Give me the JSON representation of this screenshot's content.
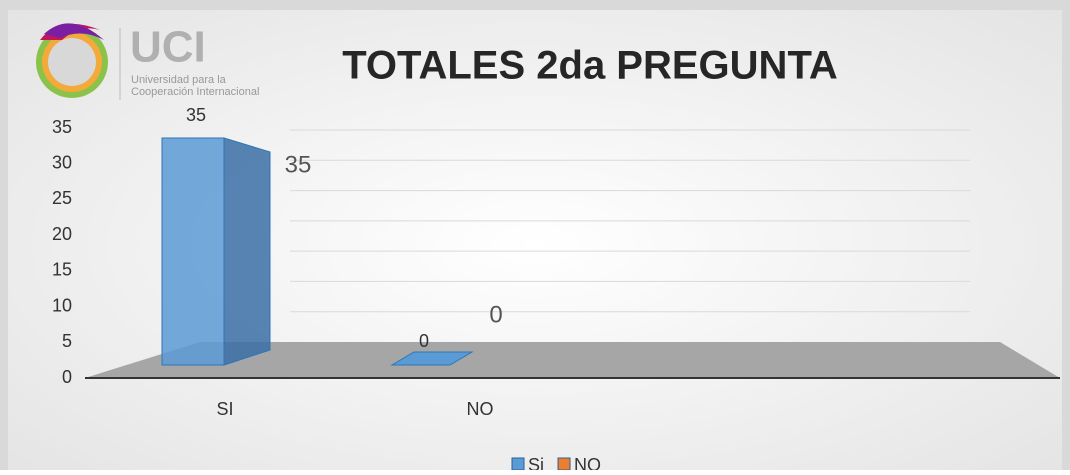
{
  "logo": {
    "name": "UCI",
    "line1": "Universidad para la",
    "line2": "Cooperación Internacional"
  },
  "chart_data": {
    "type": "bar3d",
    "title": "TOTALES 2da PREGUNTA",
    "categories": [
      "SI",
      "NO"
    ],
    "series": [
      {
        "name": "Si",
        "color": "#5b9bd5",
        "values": [
          35,
          0
        ]
      },
      {
        "name": "NO",
        "color": "#ed7d31",
        "values": [
          null,
          null
        ]
      }
    ],
    "ylim": [
      0,
      35
    ],
    "yticks": [
      0,
      5,
      10,
      15,
      20,
      25,
      30,
      35
    ],
    "grid": true,
    "legend": "bottom"
  }
}
